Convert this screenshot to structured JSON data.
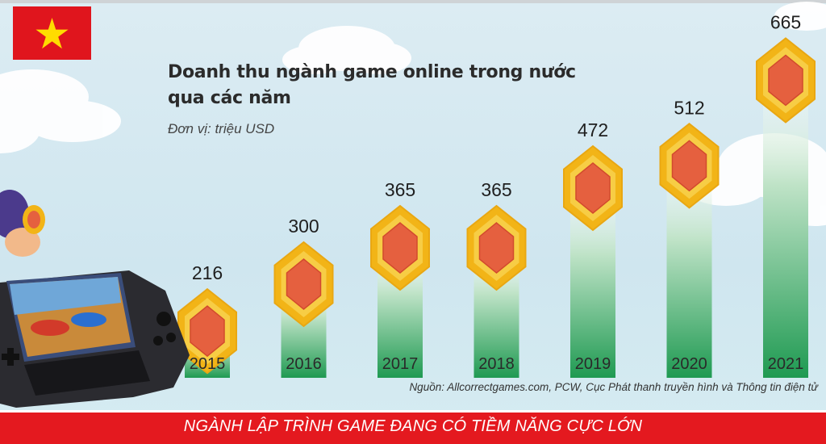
{
  "header": {
    "flag_icon": "vietnam-flag-icon"
  },
  "colors": {
    "bar_top": "#ffffff",
    "bar_bottom": "#1f9a52",
    "coin_outer": "#f2b417",
    "coin_inner": "#e5603f",
    "banner": "#e4191f"
  },
  "chart_data": {
    "type": "bar",
    "title": "Doanh thu ngành game online trong nước qua các năm",
    "subtitle": "Đơn vị: triệu USD",
    "categories": [
      "2015",
      "2016",
      "2017",
      "2018",
      "2019",
      "2020",
      "2021"
    ],
    "values": [
      216,
      300,
      365,
      365,
      472,
      512,
      665
    ],
    "ylabel": "",
    "xlabel": "",
    "ylim": [
      0,
      700
    ],
    "grid": false,
    "legend": "none",
    "source": "Nguồn: Allcorrectgames.com, PCW, Cục Phát thanh truyền hình và Thông tin điện tử"
  },
  "footer": {
    "banner_text": "NGÀNH LẬP TRÌNH GAME ĐANG CÓ TIỀM NĂNG CỰC LỚN"
  }
}
